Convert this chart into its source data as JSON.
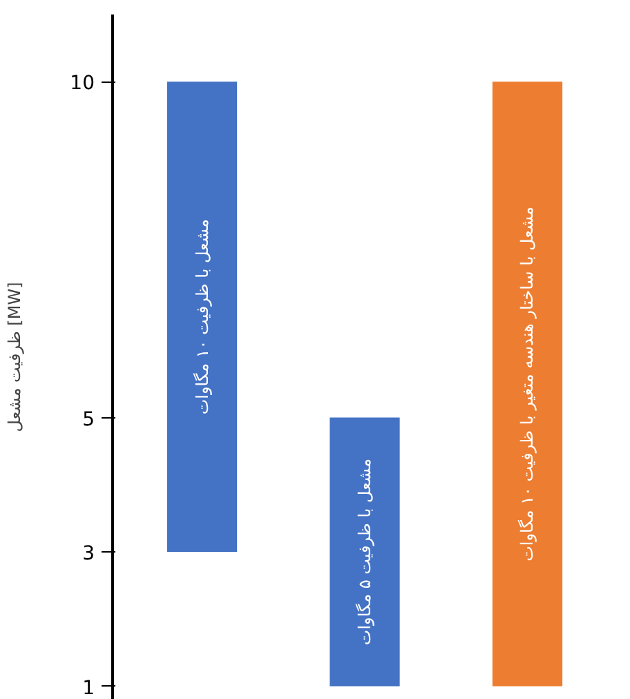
{
  "chart_data": {
    "type": "bar",
    "ylabel": "ظرفیت مشعل [MW]",
    "categories": [
      "مشعل با ظرفیت ۱۰ مگاوات",
      "مشعل با ظرفیت ۵ مگاوات",
      "مشعل با ساختار هندسه متغیر با ظرفیت ۱۰ مگاوات"
    ],
    "base": [
      3,
      1,
      1
    ],
    "values": [
      7,
      4,
      9
    ],
    "colors": [
      "#4472c4",
      "#4472c4",
      "#ed7d31"
    ],
    "ylim": [
      0.8,
      11.0
    ],
    "yticks": [
      1,
      3,
      5,
      10
    ],
    "grid": false
  }
}
